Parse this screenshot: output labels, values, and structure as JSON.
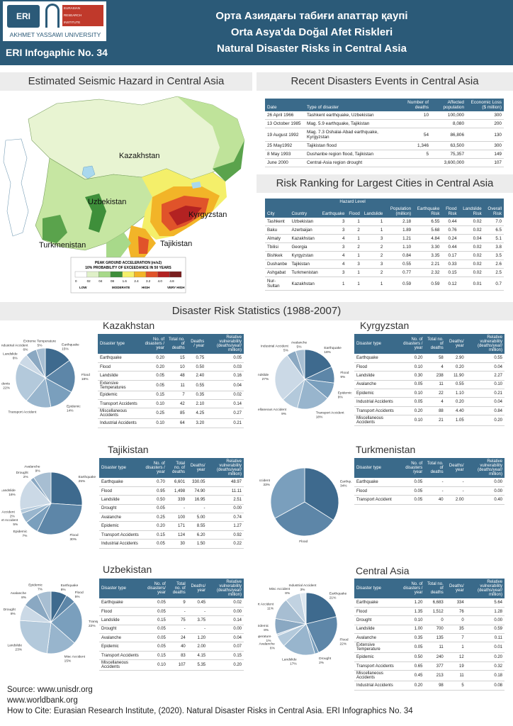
{
  "header": {
    "logo_mark": "ERI",
    "logo_red_text": [
      "EURASIAN",
      "RESEARCH",
      "INSTITUTE"
    ],
    "logo_university": "AKHMET YASSAWI UNIVERSITY",
    "infographic_no": "ERI Infogaphic No. 34",
    "title_kz": "Орта Азиядағы табиғи апаттар қаупі",
    "title_tr": "Orta Asya'da Doğal Afet Riskleri",
    "title_en": "Natural Disaster Risks in Central Asia"
  },
  "seismic": {
    "title": "Estimated Seismic Hazard in Central Asia",
    "labels": [
      "Kazakhstan",
      "Uzbekistan",
      "Kyrgyzstan",
      "Turkmenistan",
      "Tajikistan"
    ],
    "legend_title": "PEAK GROUND ACCELERATION (m/s2)",
    "legend_subtitle": "10% PROBABILITY OF EXCEEDANCE IN 50 YEARS",
    "legend_ticks": [
      "0",
      "02",
      "04",
      "08",
      "1.6",
      "2.4",
      "3.2",
      "4.0",
      "4.8"
    ],
    "legend_levels": [
      "LOW",
      "MODERATE",
      "HIGH",
      "VERY HIGH"
    ],
    "legend_colors": [
      "#ffffff",
      "#dff0c8",
      "#a8d98a",
      "#3e8f3a",
      "#f4ef6a",
      "#f2b428",
      "#e0532a",
      "#b32222",
      "#7a1e1e"
    ]
  },
  "recent": {
    "title": "Recent Disasters Events in Central Asia",
    "headers": [
      "Date",
      "Type of disaster",
      "Number of deaths",
      "Affected population",
      "Economic Loss ($ million)"
    ],
    "rows": [
      [
        "26 April 1966",
        "Tashkent earthquake, Uzbekistan",
        "10",
        "100,000",
        "300"
      ],
      [
        "13 October 1985",
        "Mag. 5.9 earthquake, Tajikistan",
        "",
        "8,080",
        "200"
      ],
      [
        "19 August 1992",
        "Mag. 7.3 Oshalai-Abad earthquake, Kyrgyzstan",
        "54",
        "86,806",
        "130"
      ],
      [
        "25 May1992",
        "Tajikistan flood",
        "1,346",
        "63,500",
        "300"
      ],
      [
        "8 May 1993",
        "Dushanbe region flood, Tajikistan",
        "5",
        "75,357",
        "149"
      ],
      [
        "June 2000",
        "Central-Asia region drought",
        "",
        "3,600,000",
        "107"
      ]
    ]
  },
  "ranking": {
    "title": "Risk Ranking for Largest Cities in Central Asia",
    "hazard_level": "Hazard Level",
    "headers": [
      "City",
      "Country",
      "Earthquake",
      "Flood",
      "Landslide",
      "Population (million)",
      "Earthquake Risk",
      "Flood Risk",
      "Landslide Risk",
      "Overall Risk"
    ],
    "rows": [
      [
        "Tashkent",
        "Uzbekistan",
        "3",
        "1",
        "1",
        "2.18",
        "6.55",
        "0.44",
        "0.02",
        "7.0"
      ],
      [
        "Baku",
        "Azerbaijan",
        "3",
        "2",
        "1",
        "1.89",
        "5.68",
        "0.76",
        "0.02",
        "6.5"
      ],
      [
        "Almaty",
        "Kazakhstan",
        "4",
        "1",
        "3",
        "1.21",
        "4.84",
        "0.24",
        "0.04",
        "5.1"
      ],
      [
        "Tbilisi",
        "Georgia",
        "3",
        "2",
        "2",
        "1.10",
        "3.30",
        "0.44",
        "0.02",
        "3.8"
      ],
      [
        "Bishkek",
        "Kyrgyzstan",
        "4",
        "1",
        "2",
        "0.84",
        "3.35",
        "0.17",
        "0.02",
        "3.5"
      ],
      [
        "Dushanbe",
        "Tajikistan",
        "4",
        "3",
        "3",
        "0.55",
        "2.21",
        "0.33",
        "0.02",
        "2.6"
      ],
      [
        "Ashgabat",
        "Turkmenistan",
        "3",
        "1",
        "2",
        "0.77",
        "2.32",
        "0.15",
        "0.02",
        "2.5"
      ],
      [
        "Nur-Sultan",
        "Kazakhstan",
        "1",
        "1",
        "1",
        "0.59",
        "0.59",
        "0.12",
        "0.01",
        "0.7"
      ]
    ]
  },
  "stats_title": "Disaster Risk Statistics (1988-2007)",
  "countries": [
    {
      "name": "Kazakhstan",
      "headers": [
        "Disaster type",
        "No. of disasters / year",
        "Total no. of deaths",
        "Deaths / year",
        "Relative vulnerability (deaths/year/ million)"
      ],
      "rows": [
        [
          "Earthquake",
          "0.20",
          "15",
          "0.75",
          "0.05"
        ],
        [
          "Flood",
          "0.20",
          "10",
          "0.50",
          "0.03"
        ],
        [
          "Landslide",
          "0.05",
          "48",
          "2.40",
          "0.16"
        ],
        [
          "Extensive Temperatures",
          "0.05",
          "11",
          "0.55",
          "0.04"
        ],
        [
          "Epidemic",
          "0.15",
          "7",
          "0.35",
          "0.02"
        ],
        [
          "Transport Accidents",
          "0.10",
          "42",
          "2.10",
          "0.14"
        ],
        [
          "Miscellaneous Accidents",
          "0.25",
          "85",
          "4.25",
          "0.27"
        ],
        [
          "Industrial Accidents",
          "0.10",
          "64",
          "3.20",
          "0.21"
        ]
      ],
      "pie": [
        {
          "label": "Earthquake",
          "pct": "15%",
          "value": 15
        },
        {
          "label": "Flood",
          "pct": "18%",
          "value": 18
        },
        {
          "label": "Epidemic",
          "pct": "14%",
          "value": 14
        },
        {
          "label": "Transport Accident",
          "pct": "",
          "value": 14
        },
        {
          "label": "Misc Accidents",
          "pct": "22%",
          "value": 22
        },
        {
          "label": "Landslide",
          "pct": "6%",
          "value": 6
        },
        {
          "label": "Industrial Accident",
          "pct": "6%",
          "value": 6
        },
        {
          "label": "Extreme Temperature",
          "pct": "5%",
          "value": 5
        }
      ]
    },
    {
      "name": "Kyrgyzstan",
      "headers": [
        "Disaster type",
        "No. of disasters / year",
        "Total no. of deaths",
        "Deaths/ year",
        "Relative vulnerability (deaths/year/ million)"
      ],
      "rows": [
        [
          "Earthquake",
          "0.20",
          "58",
          "2.90",
          "0.55"
        ],
        [
          "Flood",
          "0.10",
          "4",
          "0.20",
          "0.04"
        ],
        [
          "Landslide",
          "0.30",
          "238",
          "11.90",
          "2.27"
        ],
        [
          "Avalanche",
          "0.05",
          "11",
          "0.55",
          "0.10"
        ],
        [
          "Epidemic",
          "0.10",
          "22",
          "1.10",
          "0.21"
        ],
        [
          "Industrial Accidents",
          "0.05",
          "4",
          "0.20",
          "0.04"
        ],
        [
          "Transport Accidents",
          "0.20",
          "88",
          "4.40",
          "0.84"
        ],
        [
          "Miscellaneous Accidents",
          "0.10",
          "21",
          "1.05",
          "0.20"
        ]
      ],
      "pie": [
        {
          "label": "Earthquake",
          "pct": "18%",
          "value": 18
        },
        {
          "label": "Flood",
          "pct": "9%",
          "value": 9
        },
        {
          "label": "Epidemic",
          "pct": "9%",
          "value": 9
        },
        {
          "label": "Transport Accident",
          "pct": "18%",
          "value": 18
        },
        {
          "label": "Miscellaneous Accident",
          "pct": "9%",
          "value": 9
        },
        {
          "label": "Landslide",
          "pct": "27%",
          "value": 27
        },
        {
          "label": "Industrial Accident",
          "pct": "5%",
          "value": 5
        },
        {
          "label": "Avalanche",
          "pct": "5%",
          "value": 5
        }
      ]
    },
    {
      "name": "Tajikistan",
      "headers": [
        "Disaster type",
        "No. of disasters / year",
        "Total no. of deaths",
        "Deaths/ year",
        "Relative vulnerability (deaths/year/ million)"
      ],
      "rows": [
        [
          "Earthquake",
          "0.70",
          "6,601",
          "330.05",
          "48.97"
        ],
        [
          "Flood",
          "0.95",
          "1,498",
          "74.90",
          "11.11"
        ],
        [
          "Landslide",
          "0.50",
          "339",
          "16.95",
          "2.51"
        ],
        [
          "Drought",
          "0.05",
          "-",
          "-",
          "0.00"
        ],
        [
          "Avalanche",
          "0.25",
          "100",
          "5.00",
          "0.74"
        ],
        [
          "Epidemic",
          "0.20",
          "171",
          "8.55",
          "1.27"
        ],
        [
          "Transport Accidents",
          "0.15",
          "124",
          "6.20",
          "0.92"
        ],
        [
          "Industrial Accidents",
          "0.05",
          "30",
          "1.50",
          "0.22"
        ]
      ],
      "pie": [
        {
          "label": "Earthquake",
          "pct": "25%",
          "value": 25
        },
        {
          "label": "Flood",
          "pct": "30%",
          "value": 30
        },
        {
          "label": "Epidemic",
          "pct": "7%",
          "value": 7
        },
        {
          "label": "Transport Accident",
          "pct": "5%",
          "value": 5
        },
        {
          "label": "Industrial Accident",
          "pct": "2%",
          "value": 2
        },
        {
          "label": "Landslide",
          "pct": "16%",
          "value": 16
        },
        {
          "label": "Drought",
          "pct": "2%",
          "value": 2
        },
        {
          "label": "Avalanche",
          "pct": "9%",
          "value": 9
        }
      ]
    },
    {
      "name": "Turkmenistan",
      "headers": [
        "Disaster type",
        "No. of disasters /year",
        "Total no. of deaths",
        "Deaths/ year",
        "Relative vulnerability (deaths/year/ million)"
      ],
      "rows": [
        [
          "Earthquake",
          "0.05",
          "-",
          "-",
          "0.00"
        ],
        [
          "Flood",
          "0.05",
          "-",
          "-",
          "0.00"
        ],
        [
          "Transport Accident",
          "0.05",
          "40",
          "2.00",
          "0.40"
        ]
      ],
      "pie": [
        {
          "label": "Earthquake",
          "pct": "34%",
          "value": 34
        },
        {
          "label": "Flood",
          "pct": "33%",
          "value": 33
        },
        {
          "label": "Transport Accident",
          "pct": "33%",
          "value": 33
        }
      ]
    },
    {
      "name": "Uzbekistan",
      "headers": [
        "Disaster type",
        "No. of disasters/ year",
        "Total no. of deaths",
        "Deaths/ year",
        "Relative vulnerability (deaths/year/ million)"
      ],
      "rows": [
        [
          "Earthquake",
          "0.05",
          "9",
          "0.45",
          "0.02"
        ],
        [
          "Flood",
          "0.05",
          "-",
          "-",
          "0.00"
        ],
        [
          "Landslide",
          "0.15",
          "75",
          "3.75",
          "0.14"
        ],
        [
          "Drought",
          "0.05",
          "-",
          "-",
          "0.00"
        ],
        [
          "Avalanche",
          "0.05",
          "24",
          "1.20",
          "0.04"
        ],
        [
          "Epidemic",
          "0.05",
          "40",
          "2.00",
          "0.07"
        ],
        [
          "Transport Accidents",
          "0.15",
          "83",
          "4.15",
          "0.15"
        ],
        [
          "Miscellaneous Accidents",
          "0.10",
          "107",
          "5.35",
          "0.20"
        ]
      ],
      "pie": [
        {
          "label": "Earthquake",
          "pct": "8%",
          "value": 8
        },
        {
          "label": "Flood",
          "pct": "5%",
          "value": 5
        },
        {
          "label": "Transport Accident",
          "pct": "22%",
          "value": 22
        },
        {
          "label": "Misc Accident",
          "pct": "15%",
          "value": 15
        },
        {
          "label": "Landslide",
          "pct": "23%",
          "value": 23
        },
        {
          "label": "Drought",
          "pct": "8%",
          "value": 8
        },
        {
          "label": "Avalanche",
          "pct": "8%",
          "value": 8
        },
        {
          "label": "Epidemic",
          "pct": "7%",
          "value": 7
        }
      ]
    },
    {
      "name": "Central Asia",
      "headers": [
        "Disaster type",
        "No. of disasters / year",
        "Total no. of deaths",
        "Deaths/ year",
        "Relative vulnerability (deaths/year/ million)"
      ],
      "rows": [
        [
          "Earthquake",
          "1.20",
          "6,683",
          "334",
          "5.64"
        ],
        [
          "Flood",
          "1.35",
          "1,512",
          "76",
          "1.28"
        ],
        [
          "Drought",
          "0.10",
          "0",
          "0",
          "0.00"
        ],
        [
          "Landslide",
          "1.00",
          "700",
          "35",
          "0.59"
        ],
        [
          "Avalanche",
          "0.35",
          "135",
          "7",
          "0.11"
        ],
        [
          "Extensive Temperature",
          "0.05",
          "11",
          "1",
          "0.01"
        ],
        [
          "Epidemic",
          "0.50",
          "240",
          "12",
          "0.20"
        ],
        [
          "Transport Accidents",
          "0.65",
          "377",
          "19",
          "0.32"
        ],
        [
          "Miscellaneous Accidents",
          "0.45",
          "213",
          "11",
          "0.18"
        ],
        [
          "Industrial Accidents",
          "0.20",
          "98",
          "5",
          "0.08"
        ]
      ],
      "pie": [
        {
          "label": "Earthquake",
          "pct": "21%",
          "value": 21
        },
        {
          "label": "Flood",
          "pct": "22%",
          "value": 22
        },
        {
          "label": "Drought",
          "pct": "2%",
          "value": 2
        },
        {
          "label": "Landslide",
          "pct": "17%",
          "value": 17
        },
        {
          "label": "Avalanche",
          "pct": "6%",
          "value": 6
        },
        {
          "label": "Extreme Temperature",
          "pct": "1%",
          "value": 1
        },
        {
          "label": "Epidemic",
          "pct": "8%",
          "value": 8
        },
        {
          "label": "Transport Accident",
          "pct": "11%",
          "value": 11
        },
        {
          "label": "Misc Accident",
          "pct": "8%",
          "value": 8
        },
        {
          "label": "Industrial Accident",
          "pct": "3%",
          "value": 3
        }
      ]
    }
  ],
  "footer": {
    "source1": "Source: www.unisdr.org",
    "source2": "www.worldbank.org",
    "cite": "How to Cite: Eurasian Research Institute, (2020). Natural Disaster Risks in Central Asia. ERI Infographics No. 34"
  },
  "colors": {
    "header_bg": "#2b5a78",
    "table_header": "#3a6a8a",
    "band": "#ececec"
  }
}
